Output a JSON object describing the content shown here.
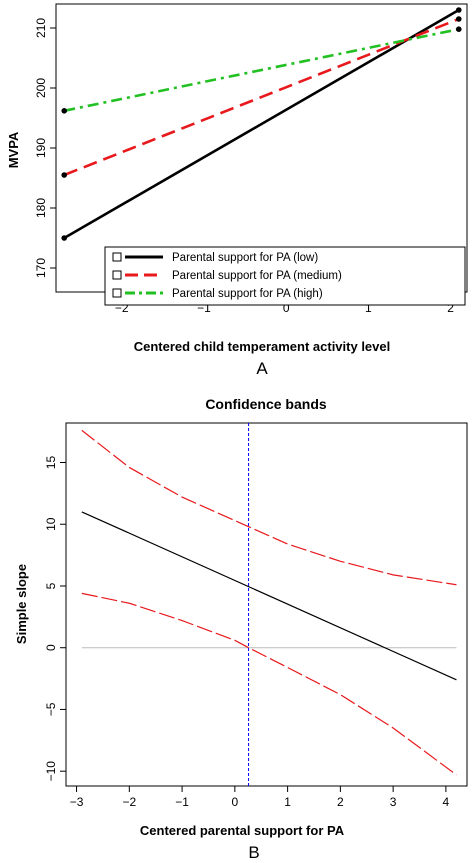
{
  "chart_data": [
    {
      "panel": "A",
      "type": "line",
      "xlabel": "Centered child temperament activity level",
      "ylabel": "MVPA",
      "xlim": [
        -2.8,
        2.2
      ],
      "ylim": [
        166,
        214
      ],
      "xticks": [
        -2,
        -1,
        0,
        1,
        2
      ],
      "xtick_labels": [
        "−2",
        "−1",
        "0",
        "1",
        "2"
      ],
      "yticks": [
        170,
        180,
        190,
        200,
        210
      ],
      "ytick_labels": [
        "170",
        "180",
        "190",
        "200",
        "210"
      ],
      "legend": "bottom-right",
      "grid": false,
      "series": [
        {
          "name": "Parental support for PA (low)",
          "color": "#000000",
          "dash": "solid",
          "x": [
            -2.7,
            2.1
          ],
          "y": [
            175.0,
            213.0
          ]
        },
        {
          "name": "Parental support for PA (medium)",
          "color": "#e8191d",
          "dash": "dashed",
          "x": [
            -2.7,
            2.1
          ],
          "y": [
            185.5,
            211.5
          ]
        },
        {
          "name": "Parental support for PA (high)",
          "color": "#22c022",
          "dash": "dotdash",
          "x": [
            -2.7,
            2.1
          ],
          "y": [
            196.2,
            209.8
          ]
        }
      ]
    },
    {
      "panel": "B",
      "type": "line",
      "title": "Confidence bands",
      "xlabel": "Centered parental support for PA",
      "ylabel": "Simple slope",
      "xlim": [
        -3.2,
        4.4
      ],
      "ylim": [
        -11.2,
        18.2
      ],
      "xticks": [
        -3,
        -2,
        -1,
        0,
        1,
        2,
        3,
        4
      ],
      "xtick_labels": [
        "−3",
        "−2",
        "−1",
        "0",
        "1",
        "2",
        "3",
        "4"
      ],
      "yticks": [
        -10,
        -5,
        0,
        5,
        10,
        15
      ],
      "ytick_labels": [
        "−10",
        "−5",
        "0",
        "5",
        "10",
        "15"
      ],
      "grid": false,
      "zero_line": {
        "y": 0,
        "color": "#bbbbbb"
      },
      "vertical_line": {
        "x": 0.26,
        "color": "#0000ff"
      },
      "series": [
        {
          "name": "",
          "role": "slope",
          "color": "#000000",
          "dash": "solid",
          "x": [
            -2.9,
            4.2
          ],
          "y": [
            11.0,
            -2.6
          ]
        },
        {
          "name": "",
          "role": "upper-band",
          "color": "#e8191d",
          "dash": "longdash",
          "x": [
            -2.9,
            -2,
            -1,
            0,
            0.26,
            1,
            2,
            3,
            4.2
          ],
          "y": [
            17.6,
            14.6,
            12.2,
            10.3,
            9.8,
            8.4,
            7.0,
            5.9,
            5.1
          ]
        },
        {
          "name": "",
          "role": "lower-band",
          "color": "#e8191d",
          "dash": "longdash",
          "x": [
            -2.9,
            -2,
            -1,
            0,
            0.26,
            1,
            2,
            3,
            4.2
          ],
          "y": [
            4.4,
            3.6,
            2.2,
            0.6,
            0.0,
            -1.6,
            -3.8,
            -6.5,
            -10.3
          ]
        }
      ]
    }
  ],
  "panel_labels": {
    "a": "A",
    "b": "B"
  }
}
